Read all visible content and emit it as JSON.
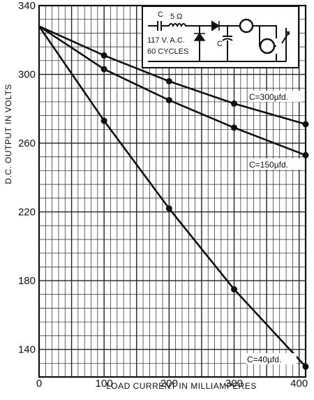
{
  "chart_data": {
    "type": "line",
    "xlabel": "LOAD CURRENT IN MILLIAMPERES",
    "ylabel": "D.C. OUTPUT IN VOLTS",
    "xlim": [
      0,
      410
    ],
    "ylim": [
      124,
      340
    ],
    "x_ticks": [
      "0",
      "100",
      "200",
      "300",
      "400"
    ],
    "y_ticks": [
      "140",
      "180",
      "220",
      "260",
      "300",
      "340"
    ],
    "x_tick_values": [
      0,
      100,
      200,
      300,
      400
    ],
    "y_tick_values": [
      140,
      180,
      220,
      260,
      300,
      340
    ],
    "grid": true,
    "series": [
      {
        "name": "C=300µfd.",
        "x": [
          0,
          100,
          200,
          300,
          410
        ],
        "y": [
          328,
          311,
          296,
          283,
          271
        ]
      },
      {
        "name": "C=150µfd.",
        "x": [
          0,
          100,
          200,
          300,
          410
        ],
        "y": [
          328,
          303,
          285,
          269,
          253
        ]
      },
      {
        "name": "C=40µfd.",
        "x": [
          0,
          100,
          200,
          300,
          410
        ],
        "y": [
          328,
          273,
          222,
          175,
          130
        ]
      }
    ],
    "inset": {
      "supply_label_1": "117 V. A.C.",
      "supply_label_2": "60 CYCLES",
      "resistor_label": "5 Ω",
      "capacitor_label_1": "C",
      "capacitor_label_2": "C"
    }
  }
}
